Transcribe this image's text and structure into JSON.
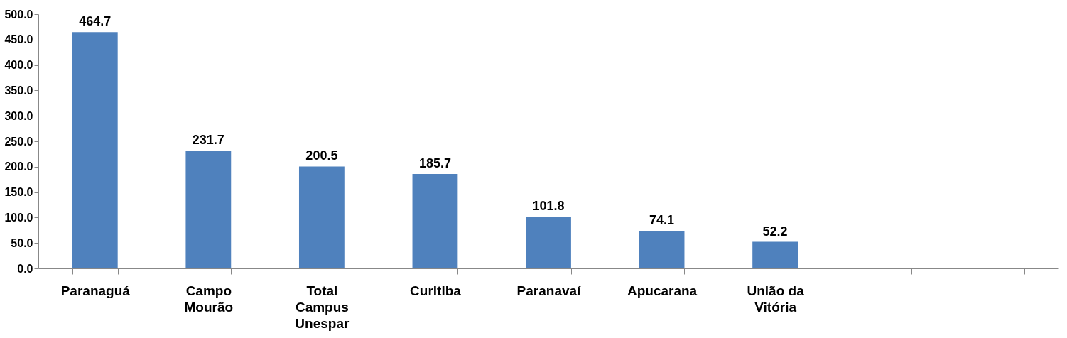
{
  "chart_data": {
    "type": "bar",
    "categories": [
      "Paranaguá",
      "Campo Mourão",
      "Total Campus Unespar",
      "Curitiba",
      "Paranavaí",
      "Apucarana",
      "União da Vitória",
      null,
      null
    ],
    "values": [
      464.7,
      231.7,
      200.5,
      185.7,
      101.8,
      74.1,
      52.2,
      null,
      null
    ],
    "color": "#4f81bd",
    "ylim": [
      0,
      500
    ],
    "yticks": [
      {
        "value": 0,
        "label": "0.0"
      },
      {
        "value": 50,
        "label": "50.0"
      },
      {
        "value": 100,
        "label": "100.0"
      },
      {
        "value": 150,
        "label": "150.0"
      },
      {
        "value": 200,
        "label": "200.0"
      },
      {
        "value": 250,
        "label": "250.0"
      },
      {
        "value": 300,
        "label": "300.0"
      },
      {
        "value": 350,
        "label": "350.0"
      },
      {
        "value": 400,
        "label": "400.0"
      },
      {
        "value": 450,
        "label": "450.0"
      },
      {
        "value": 500,
        "label": "500.0"
      }
    ],
    "grid": false,
    "data_labels": true
  }
}
